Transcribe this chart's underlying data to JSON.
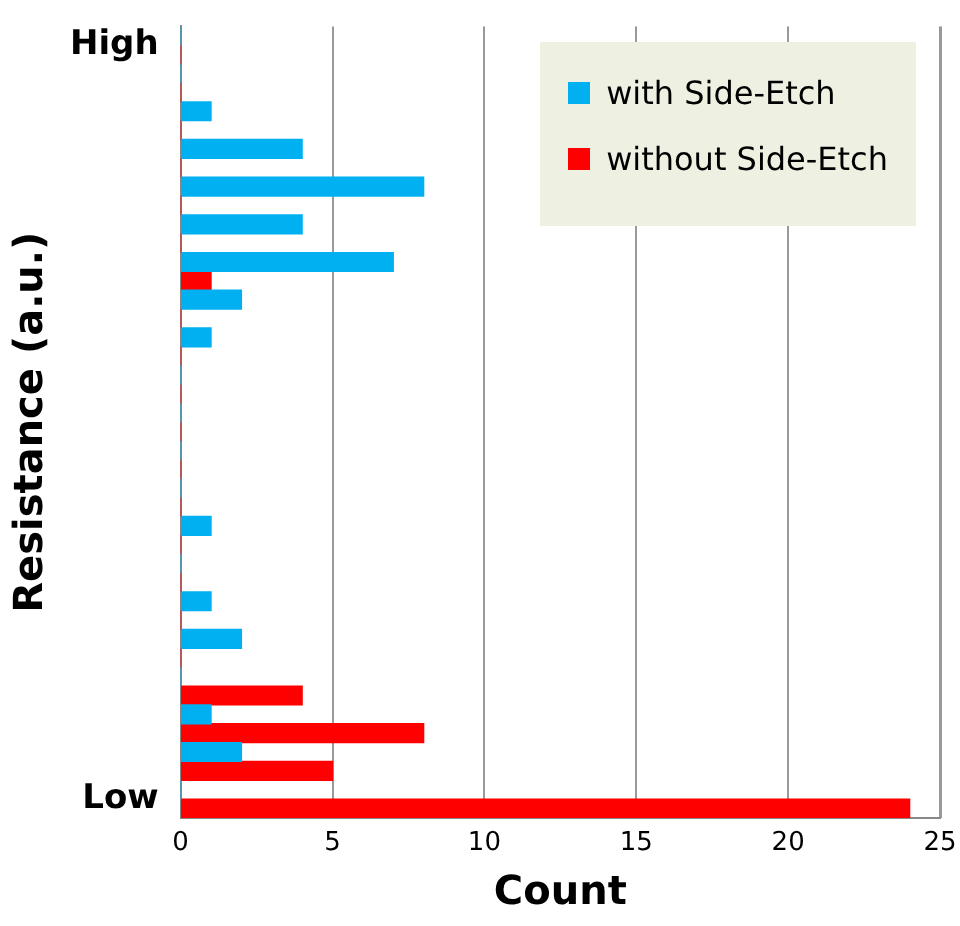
{
  "chart_data": {
    "type": "bar",
    "orientation": "horizontal",
    "xlabel": "Count",
    "ylabel": "Resistance (a.u.)",
    "categories": [
      "High",
      null,
      null,
      null,
      null,
      null,
      null,
      null,
      null,
      null,
      null,
      null,
      null,
      null,
      null,
      null,
      null,
      null,
      null,
      null,
      "Low"
    ],
    "series": [
      {
        "name": "with Side-Etch",
        "color": "#00b0f0",
        "values": [
          0,
          0,
          1,
          4,
          8,
          4,
          7,
          2,
          1,
          0,
          0,
          0,
          0,
          1,
          0,
          1,
          2,
          0,
          1,
          2,
          0
        ]
      },
      {
        "name": "without Side-Etch",
        "color": "#ff0000",
        "values": [
          0,
          0,
          0,
          0,
          0,
          0,
          1,
          0,
          0,
          0,
          0,
          0,
          0,
          0,
          0,
          0,
          0,
          4,
          8,
          5,
          24
        ]
      }
    ],
    "xlim": [
      0,
      25
    ],
    "xticks": [
      0,
      5,
      10,
      15,
      20,
      25
    ],
    "grid": "x",
    "legend": "top right"
  }
}
